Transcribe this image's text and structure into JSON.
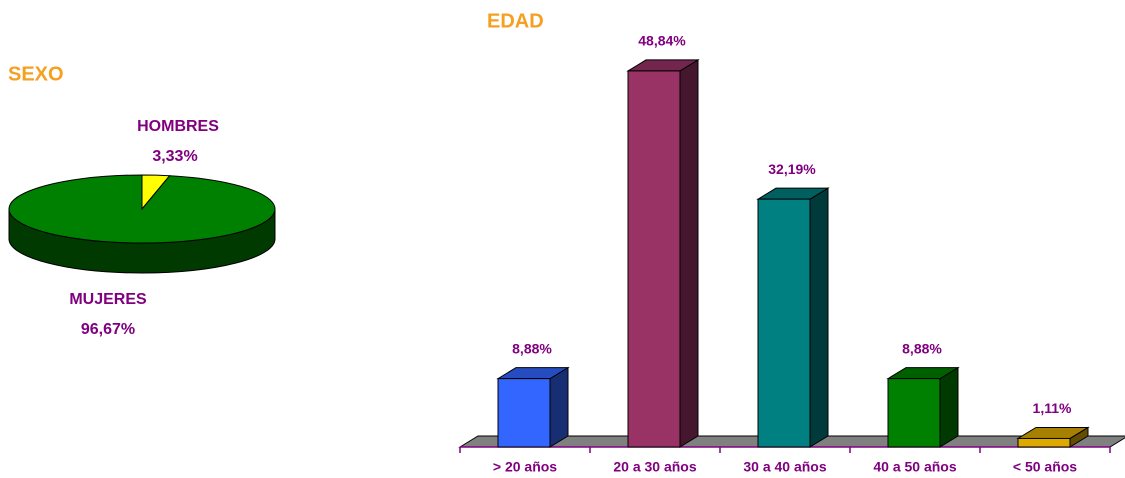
{
  "chart_data": [
    {
      "type": "pie",
      "title": "SEXO",
      "categories": [
        "HOMBRES",
        "MUJERES"
      ],
      "values": [
        3.33,
        96.67
      ],
      "value_labels": [
        "3,33%",
        "96,67%"
      ],
      "colors": [
        "#ffff00",
        "#008000"
      ]
    },
    {
      "type": "bar",
      "title": "EDAD",
      "categories": [
        "> 20 años",
        "20 a 30 años",
        "30 a 40 años",
        "40 a 50 años",
        "< 50 años"
      ],
      "values": [
        8.88,
        48.84,
        32.19,
        8.88,
        1.11
      ],
      "value_labels": [
        "8,88%",
        "48,84%",
        "32,19%",
        "8,88%",
        "1,11%"
      ],
      "colors": [
        "#3366ff",
        "#993366",
        "#008080",
        "#008000",
        "#ddaa00"
      ]
    }
  ]
}
